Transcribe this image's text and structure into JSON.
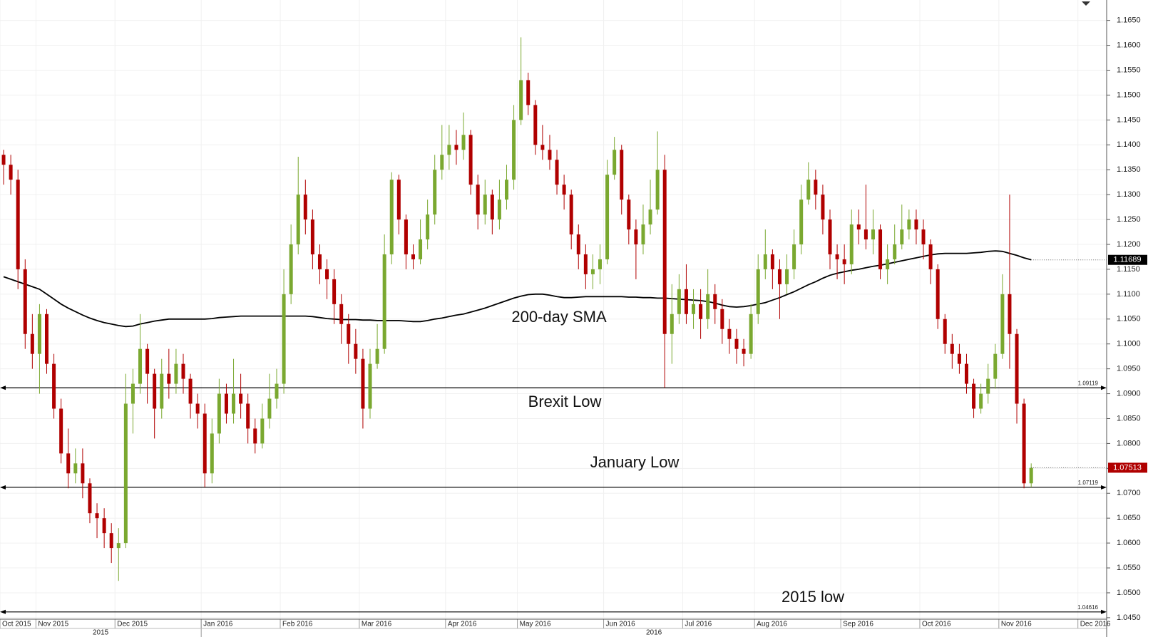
{
  "chart_data": {
    "type": "candlestick",
    "categories": [
      "Oct 2015",
      null,
      null,
      null,
      null,
      "Nov 2015",
      null,
      null,
      null,
      null,
      null,
      null,
      null,
      null,
      null,
      null,
      "Dec 2015",
      null,
      null,
      null,
      null,
      null,
      null,
      null,
      null,
      null,
      null,
      null,
      "Jan 2016",
      null,
      null,
      null,
      null,
      null,
      null,
      null,
      null,
      null,
      null,
      "Feb 2016",
      null,
      null,
      null,
      null,
      null,
      null,
      null,
      null,
      null,
      null,
      "Mar 2016",
      null,
      null,
      null,
      null,
      null,
      null,
      null,
      null,
      null,
      null,
      null,
      "Apr 2016",
      null,
      null,
      null,
      null,
      null,
      null,
      null,
      null,
      null,
      "May 2016",
      null,
      null,
      null,
      null,
      null,
      null,
      null,
      null,
      null,
      null,
      null,
      "Jun 2016",
      null,
      null,
      null,
      null,
      null,
      null,
      null,
      null,
      null,
      null,
      "Jul 2016",
      null,
      null,
      null,
      null,
      null,
      null,
      null,
      null,
      null,
      "Aug 2016",
      null,
      null,
      null,
      null,
      null,
      null,
      null,
      null,
      null,
      null,
      null,
      "Sep 2016",
      null,
      null,
      null,
      null,
      null,
      null,
      null,
      null,
      null,
      null,
      "Oct 2016",
      null,
      null,
      null,
      null,
      null,
      null,
      null,
      null,
      null,
      null,
      "Nov 2016",
      null,
      null,
      null,
      null,
      null,
      null,
      null,
      null,
      null,
      null,
      "Dec 2016",
      null,
      null,
      null
    ],
    "years": [
      "2015",
      "2016"
    ],
    "open": [
      1.138,
      1.136,
      1.133,
      1.115,
      1.102,
      1.098,
      1.106,
      1.096,
      1.087,
      1.078,
      1.074,
      1.076,
      1.072,
      1.066,
      1.065,
      1.062,
      1.059,
      1.06,
      1.088,
      1.092,
      1.099,
      1.094,
      1.087,
      1.094,
      1.092,
      1.096,
      1.093,
      1.088,
      1.086,
      1.074,
      1.082,
      1.09,
      1.086,
      1.09,
      1.088,
      1.083,
      1.08,
      1.085,
      1.089,
      1.092,
      1.11,
      1.12,
      1.13,
      1.125,
      1.118,
      1.115,
      1.113,
      1.108,
      1.104,
      1.1,
      1.097,
      1.087,
      1.096,
      1.099,
      1.118,
      1.133,
      1.125,
      1.118,
      1.117,
      1.121,
      1.126,
      1.135,
      1.138,
      1.14,
      1.139,
      1.142,
      1.132,
      1.126,
      1.13,
      1.125,
      1.129,
      1.133,
      1.145,
      1.153,
      1.148,
      1.14,
      1.139,
      1.137,
      1.132,
      1.13,
      1.122,
      1.118,
      1.114,
      1.115,
      1.117,
      1.134,
      1.139,
      1.129,
      1.123,
      1.12,
      1.124,
      1.127,
      1.135,
      1.102,
      1.106,
      1.111,
      1.106,
      1.108,
      1.105,
      1.11,
      1.107,
      1.103,
      1.101,
      1.099,
      1.098,
      1.106,
      1.115,
      1.118,
      1.115,
      1.112,
      1.115,
      1.12,
      1.129,
      1.133,
      1.13,
      1.125,
      1.118,
      1.117,
      1.116,
      1.124,
      1.123,
      1.121,
      1.123,
      1.115,
      1.117,
      1.12,
      1.123,
      1.125,
      1.123,
      1.12,
      1.115,
      1.105,
      1.1,
      1.098,
      1.096,
      1.092,
      1.087,
      1.09,
      1.093,
      1.098,
      1.11,
      1.102,
      1.088,
      1.072,
      null,
      null,
      null,
      null,
      null,
      null,
      null,
      null,
      null,
      null
    ],
    "high": [
      1.139,
      1.138,
      1.135,
      1.117,
      1.106,
      1.108,
      1.107,
      1.098,
      1.089,
      1.083,
      1.079,
      1.079,
      1.073,
      1.068,
      1.067,
      1.064,
      1.063,
      1.094,
      1.095,
      1.106,
      1.1,
      1.095,
      1.097,
      1.099,
      1.099,
      1.098,
      1.094,
      1.09,
      1.088,
      1.085,
      1.093,
      1.092,
      1.097,
      1.094,
      1.09,
      1.085,
      1.088,
      1.094,
      1.095,
      1.115,
      1.124,
      1.1376,
      1.133,
      1.127,
      1.12,
      1.117,
      1.115,
      1.11,
      1.106,
      1.103,
      1.099,
      1.099,
      1.104,
      1.122,
      1.1345,
      1.134,
      1.126,
      1.12,
      1.125,
      1.129,
      1.138,
      1.144,
      1.144,
      1.143,
      1.1465,
      1.143,
      1.134,
      1.133,
      1.131,
      1.133,
      1.136,
      1.148,
      1.1616,
      1.1545,
      1.149,
      1.144,
      1.142,
      1.139,
      1.134,
      1.131,
      1.124,
      1.12,
      1.118,
      1.12,
      1.137,
      1.1416,
      1.14,
      1.13,
      1.125,
      1.128,
      1.133,
      1.1427,
      1.138,
      1.112,
      1.114,
      1.116,
      1.111,
      1.111,
      1.115,
      1.112,
      1.109,
      1.105,
      1.103,
      1.101,
      1.108,
      1.118,
      1.123,
      1.119,
      1.117,
      1.118,
      1.123,
      1.132,
      1.1365,
      1.135,
      1.132,
      1.127,
      1.12,
      1.12,
      1.127,
      1.127,
      1.132,
      1.127,
      1.124,
      1.12,
      1.124,
      1.128,
      1.127,
      1.127,
      1.125,
      1.121,
      1.116,
      1.106,
      1.102,
      1.1,
      1.098,
      1.093,
      1.092,
      1.096,
      1.1,
      1.114,
      1.13,
      1.103,
      1.089,
      1.076,
      null,
      null,
      null,
      null,
      null,
      null,
      null,
      null,
      null,
      null
    ],
    "low": [
      1.132,
      1.13,
      1.111,
      1.099,
      1.095,
      1.09,
      1.094,
      1.085,
      1.076,
      1.071,
      1.072,
      1.069,
      1.064,
      1.061,
      1.059,
      1.056,
      1.0524,
      1.059,
      1.082,
      1.09,
      1.088,
      1.081,
      1.085,
      1.089,
      1.09,
      1.09,
      1.085,
      1.083,
      1.0712,
      1.072,
      1.08,
      1.084,
      1.084,
      1.085,
      1.08,
      1.078,
      1.079,
      1.083,
      1.087,
      1.09,
      1.108,
      1.118,
      1.122,
      1.115,
      1.112,
      1.109,
      1.104,
      1.1,
      1.096,
      1.094,
      1.083,
      1.085,
      1.095,
      1.098,
      1.116,
      1.122,
      1.115,
      1.115,
      1.116,
      1.119,
      1.124,
      1.133,
      1.135,
      1.136,
      1.137,
      1.13,
      1.123,
      1.124,
      1.122,
      1.123,
      1.127,
      1.131,
      1.144,
      1.146,
      1.138,
      1.137,
      1.135,
      1.13,
      1.127,
      1.119,
      1.115,
      1.111,
      1.111,
      1.112,
      1.116,
      1.133,
      1.126,
      1.12,
      1.113,
      1.118,
      1.122,
      1.126,
      1.0912,
      1.096,
      1.104,
      1.104,
      1.103,
      1.101,
      1.103,
      1.104,
      1.1,
      1.098,
      1.096,
      1.0955,
      1.097,
      1.104,
      1.113,
      1.111,
      1.105,
      1.11,
      1.113,
      1.118,
      1.128,
      1.127,
      1.122,
      1.115,
      1.113,
      1.112,
      1.114,
      1.12,
      1.119,
      1.118,
      1.113,
      1.112,
      1.116,
      1.119,
      1.121,
      1.12,
      1.117,
      1.112,
      1.103,
      1.098,
      1.095,
      1.094,
      1.09,
      1.0851,
      1.086,
      1.088,
      1.091,
      1.097,
      1.095,
      1.084,
      1.071,
      1.0712,
      null,
      null,
      null,
      null,
      null,
      null,
      null,
      null,
      null,
      null
    ],
    "close": [
      1.136,
      1.133,
      1.115,
      1.102,
      1.098,
      1.106,
      1.096,
      1.087,
      1.078,
      1.074,
      1.076,
      1.072,
      1.066,
      1.065,
      1.062,
      1.059,
      1.06,
      1.088,
      1.092,
      1.099,
      1.094,
      1.087,
      1.094,
      1.092,
      1.096,
      1.093,
      1.088,
      1.086,
      1.074,
      1.082,
      1.09,
      1.086,
      1.09,
      1.088,
      1.083,
      1.08,
      1.085,
      1.089,
      1.092,
      1.11,
      1.12,
      1.13,
      1.125,
      1.118,
      1.115,
      1.113,
      1.108,
      1.104,
      1.1,
      1.097,
      1.087,
      1.096,
      1.099,
      1.118,
      1.133,
      1.125,
      1.118,
      1.117,
      1.121,
      1.126,
      1.135,
      1.138,
      1.14,
      1.139,
      1.142,
      1.132,
      1.126,
      1.13,
      1.125,
      1.129,
      1.133,
      1.145,
      1.153,
      1.148,
      1.14,
      1.139,
      1.137,
      1.132,
      1.13,
      1.122,
      1.118,
      1.114,
      1.115,
      1.117,
      1.134,
      1.139,
      1.129,
      1.123,
      1.12,
      1.124,
      1.127,
      1.135,
      1.102,
      1.106,
      1.111,
      1.106,
      1.108,
      1.105,
      1.11,
      1.107,
      1.103,
      1.101,
      1.099,
      1.098,
      1.106,
      1.115,
      1.118,
      1.115,
      1.112,
      1.115,
      1.12,
      1.129,
      1.133,
      1.13,
      1.125,
      1.118,
      1.117,
      1.116,
      1.124,
      1.123,
      1.121,
      1.123,
      1.115,
      1.117,
      1.12,
      1.123,
      1.125,
      1.123,
      1.12,
      1.115,
      1.105,
      1.1,
      1.098,
      1.096,
      1.092,
      1.087,
      1.09,
      1.093,
      1.098,
      1.11,
      1.102,
      1.088,
      1.072,
      1.0751,
      null,
      null,
      null,
      null,
      null,
      null,
      null,
      null,
      null,
      null
    ],
    "up_color": "#7aa830",
    "down_color": "#b00000",
    "sma": {
      "name": "200-day SMA",
      "color": "#000000",
      "values": [
        1.1135,
        1.113,
        1.1125,
        1.112,
        1.1115,
        1.111,
        1.11,
        1.109,
        1.108,
        1.1072,
        1.1065,
        1.1058,
        1.1052,
        1.1047,
        1.1043,
        1.104,
        1.1037,
        1.1035,
        1.1036,
        1.104,
        1.1043,
        1.1046,
        1.1048,
        1.105,
        1.105,
        1.105,
        1.105,
        1.105,
        1.105,
        1.1051,
        1.1053,
        1.1054,
        1.1055,
        1.1056,
        1.1056,
        1.1056,
        1.1056,
        1.1056,
        1.1056,
        1.1056,
        1.1056,
        1.1056,
        1.1056,
        1.1055,
        1.1053,
        1.1051,
        1.105,
        1.1049,
        1.1049,
        1.1049,
        1.1048,
        1.1048,
        1.1047,
        1.1047,
        1.1047,
        1.1047,
        1.1046,
        1.1045,
        1.1045,
        1.1047,
        1.105,
        1.1052,
        1.1055,
        1.1058,
        1.106,
        1.1064,
        1.1068,
        1.1072,
        1.1077,
        1.1082,
        1.1087,
        1.1092,
        1.1096,
        1.1099,
        1.11,
        1.11,
        1.1098,
        1.1095,
        1.1093,
        1.1093,
        1.1094,
        1.1095,
        1.1095,
        1.1095,
        1.1095,
        1.1095,
        1.1095,
        1.1094,
        1.1094,
        1.1093,
        1.1093,
        1.1092,
        1.1092,
        1.1091,
        1.109,
        1.1089,
        1.1088,
        1.1087,
        1.1085,
        1.1082,
        1.1078,
        1.1075,
        1.1074,
        1.1075,
        1.1077,
        1.108,
        1.1083,
        1.1088,
        1.1093,
        1.1099,
        1.1105,
        1.1112,
        1.1119,
        1.1125,
        1.1132,
        1.1138,
        1.1142,
        1.1145,
        1.1148,
        1.115,
        1.1153,
        1.1156,
        1.1158,
        1.1161,
        1.1164,
        1.1167,
        1.117,
        1.1173,
        1.1176,
        1.1179,
        1.1181,
        1.1182,
        1.1182,
        1.1182,
        1.1182,
        1.1183,
        1.1184,
        1.1186,
        1.1187,
        1.1186,
        1.1182,
        1.1178,
        1.1173,
        1.1169,
        null,
        null,
        null,
        null,
        null,
        null,
        null,
        null,
        null,
        null
      ]
    },
    "levels": [
      {
        "name": "Brexit Low",
        "value": 1.09119
      },
      {
        "name": "January Low",
        "value": 1.07119
      },
      {
        "name": "2015 low",
        "value": 1.04616
      }
    ],
    "price_tags": [
      {
        "value": 1.11689,
        "color": "#000000"
      },
      {
        "value": 1.07513,
        "color": "#b00000"
      }
    ],
    "ylim": [
      1.0447,
      1.1691
    ],
    "yticks": [
      {
        "value": 1.045,
        "label": "1.0450"
      },
      {
        "value": 1.05,
        "label": "1.0500"
      },
      {
        "value": 1.055,
        "label": "1.0550"
      },
      {
        "value": 1.06,
        "label": "1.0600"
      },
      {
        "value": 1.065,
        "label": "1.0650"
      },
      {
        "value": 1.07,
        "label": "1.0700"
      },
      {
        "value": 1.075,
        "label": "1.0750"
      },
      {
        "value": 1.08,
        "label": "1.0800"
      },
      {
        "value": 1.085,
        "label": "1.0850"
      },
      {
        "value": 1.09,
        "label": "1.0900"
      },
      {
        "value": 1.095,
        "label": "1.0950"
      },
      {
        "value": 1.1,
        "label": "1.1000"
      },
      {
        "value": 1.105,
        "label": "1.1050"
      },
      {
        "value": 1.11,
        "label": "1.1100"
      },
      {
        "value": 1.115,
        "label": "1.1150"
      },
      {
        "value": 1.12,
        "label": "1.1200"
      },
      {
        "value": 1.125,
        "label": "1.1250"
      },
      {
        "value": 1.13,
        "label": "1.1300"
      },
      {
        "value": 1.135,
        "label": "1.1350"
      },
      {
        "value": 1.14,
        "label": "1.1400"
      },
      {
        "value": 1.145,
        "label": "1.1450"
      },
      {
        "value": 1.15,
        "label": "1.1500"
      },
      {
        "value": 1.155,
        "label": "1.1550"
      },
      {
        "value": 1.16,
        "label": "1.1600"
      },
      {
        "value": 1.165,
        "label": "1.1650"
      }
    ],
    "grid": true
  }
}
